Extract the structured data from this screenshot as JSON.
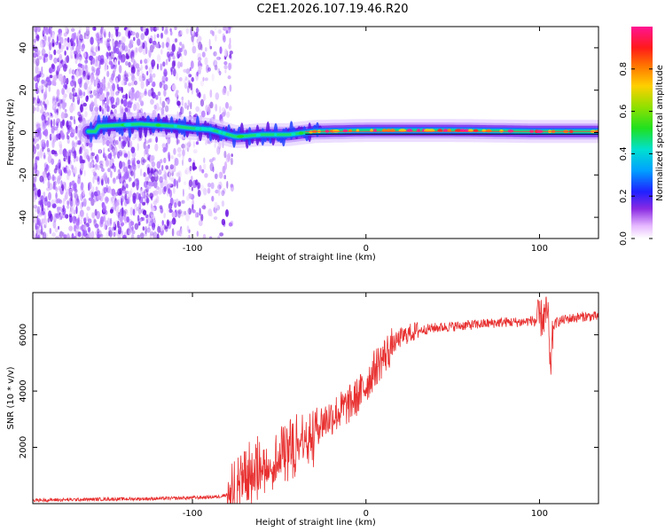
{
  "title": "C2E1.2026.107.19.46.R20",
  "chart_data": [
    {
      "type": "heatmap",
      "name": "spectrogram",
      "xlabel": "Height of straight line (km)",
      "ylabel": "Frequency (Hz)",
      "xlim": [
        -192,
        134
      ],
      "ylim": [
        -50,
        50
      ],
      "xticks": [
        -100,
        0,
        100
      ],
      "xtick_labels": [
        "-100",
        "0",
        "100"
      ],
      "yticks": [
        -40,
        -20,
        0,
        20,
        40
      ],
      "ytick_labels": [
        "-40",
        "-20",
        "0",
        "20",
        "40"
      ],
      "colorbar": {
        "label": "Normalized spectral amplitude",
        "range": [
          0,
          1
        ],
        "ticks": [
          0.0,
          0.2,
          0.4,
          0.6,
          0.8
        ],
        "tick_labels": [
          "0.0",
          "0.2",
          "0.4",
          "0.6",
          "0.8"
        ]
      },
      "description_points": {
        "band_center_hz": [
          [
            -155,
            3
          ],
          [
            -130,
            4
          ],
          [
            -110,
            3
          ],
          [
            -100,
            2
          ],
          [
            -90,
            1.5
          ],
          [
            -75,
            -2
          ],
          [
            -60,
            -1
          ],
          [
            -45,
            -1
          ],
          [
            -30,
            0.5
          ],
          [
            0,
            1
          ],
          [
            50,
            1
          ],
          [
            100,
            0.5
          ],
          [
            134,
            0.5
          ]
        ]
      }
    },
    {
      "type": "line",
      "name": "snr",
      "xlabel": "Height of straight line (km)",
      "ylabel": "SNR (10 * v/v)",
      "xlim": [
        -192,
        134
      ],
      "ylim": [
        0,
        7500
      ],
      "xticks": [
        -100,
        0,
        100
      ],
      "xtick_labels": [
        "-100",
        "0",
        "100"
      ],
      "yticks": [
        2000,
        4000,
        6000
      ],
      "ytick_labels": [
        "2000",
        "4000",
        "6000"
      ],
      "color": "#e83030",
      "x": [
        -192,
        -170,
        -150,
        -130,
        -110,
        -100,
        -90,
        -85,
        -80,
        -75,
        -70,
        -65,
        -60,
        -55,
        -50,
        -45,
        -40,
        -35,
        -30,
        -25,
        -20,
        -15,
        -10,
        -5,
        0,
        5,
        10,
        15,
        20,
        25,
        30,
        40,
        50,
        60,
        70,
        80,
        90,
        95,
        100,
        103,
        105,
        106,
        108,
        110,
        115,
        120,
        125,
        130,
        134
      ],
      "y": [
        120,
        140,
        160,
        170,
        190,
        210,
        230,
        250,
        320,
        700,
        1150,
        1450,
        1600,
        1750,
        1900,
        2100,
        2300,
        2500,
        2700,
        2900,
        3100,
        3300,
        3500,
        3800,
        4200,
        4800,
        5200,
        5600,
        5900,
        6050,
        6150,
        6250,
        6300,
        6350,
        6400,
        6450,
        6450,
        6500,
        6550,
        6650,
        6800,
        4600,
        6300,
        6450,
        6550,
        6600,
        6650,
        6650,
        6650
      ]
    }
  ]
}
